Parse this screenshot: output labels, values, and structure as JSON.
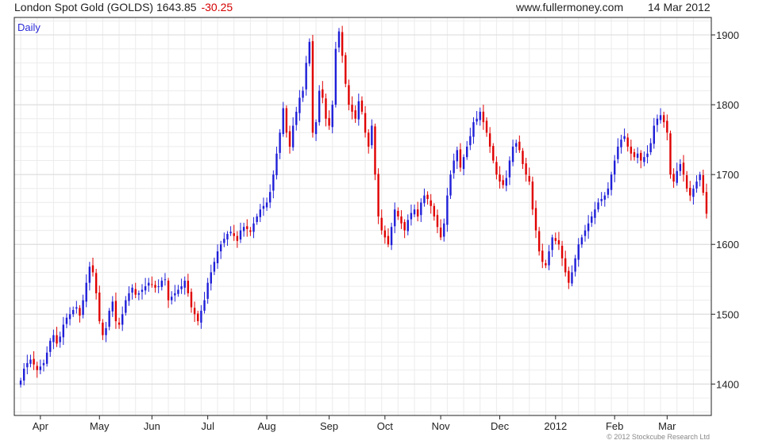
{
  "header": {
    "title": "London Spot Gold (GOLDS) 1643.85",
    "change": "-30.25",
    "site": "www.fullermoney.com",
    "date": "14 Mar 2012"
  },
  "period_label": "Daily",
  "copyright": "© 2012 Stockcube Research Ltd",
  "colors": {
    "up": "#1f1fd8",
    "down": "#e00000",
    "grid": "#d9d9d9",
    "axis": "#222222"
  },
  "chart_data": {
    "type": "candlestick",
    "title": "London Spot Gold (GOLDS)",
    "last_price": 1643.85,
    "change": -30.25,
    "ylim": [
      1355,
      1925
    ],
    "y_ticks": [
      1400,
      1500,
      1600,
      1700,
      1800,
      1900
    ],
    "y_axis_position": "right",
    "x_ticks": [
      "Apr",
      "May",
      "Jun",
      "Jul",
      "Aug",
      "Sep",
      "Oct",
      "Nov",
      "Dec",
      "2012",
      "Feb",
      "Mar"
    ],
    "grid": true,
    "approx_close_series": [
      1405,
      1422,
      1430,
      1435,
      1428,
      1420,
      1425,
      1430,
      1445,
      1462,
      1470,
      1458,
      1468,
      1485,
      1495,
      1500,
      1506,
      1510,
      1498,
      1520,
      1545,
      1568,
      1560,
      1530,
      1490,
      1470,
      1480,
      1505,
      1518,
      1490,
      1485,
      1500,
      1520,
      1530,
      1538,
      1528,
      1530,
      1535,
      1540,
      1545,
      1542,
      1538,
      1540,
      1548,
      1550,
      1520,
      1525,
      1530,
      1535,
      1540,
      1548,
      1530,
      1510,
      1500,
      1490,
      1505,
      1520,
      1545,
      1560,
      1575,
      1590,
      1600,
      1608,
      1615,
      1618,
      1612,
      1605,
      1620,
      1625,
      1622,
      1618,
      1630,
      1640,
      1650,
      1655,
      1660,
      1675,
      1700,
      1730,
      1760,
      1795,
      1760,
      1740,
      1770,
      1790,
      1810,
      1820,
      1860,
      1890,
      1760,
      1775,
      1820,
      1810,
      1780,
      1770,
      1800,
      1880,
      1905,
      1870,
      1830,
      1800,
      1790,
      1780,
      1805,
      1790,
      1760,
      1740,
      1770,
      1700,
      1640,
      1620,
      1610,
      1600,
      1625,
      1650,
      1640,
      1630,
      1620,
      1635,
      1645,
      1650,
      1640,
      1660,
      1670,
      1665,
      1655,
      1640,
      1625,
      1610,
      1630,
      1670,
      1700,
      1720,
      1735,
      1710,
      1725,
      1740,
      1755,
      1775,
      1780,
      1790,
      1775,
      1760,
      1740,
      1720,
      1700,
      1690,
      1685,
      1695,
      1720,
      1740,
      1745,
      1735,
      1715,
      1700,
      1690,
      1650,
      1620,
      1590,
      1575,
      1570,
      1590,
      1610,
      1605,
      1600,
      1580,
      1560,
      1545,
      1560,
      1580,
      1600,
      1610,
      1620,
      1630,
      1640,
      1650,
      1660,
      1665,
      1670,
      1680,
      1700,
      1720,
      1740,
      1750,
      1755,
      1740,
      1730,
      1725,
      1730,
      1720,
      1725,
      1730,
      1745,
      1770,
      1780,
      1785,
      1775,
      1760,
      1700,
      1690,
      1705,
      1715,
      1700,
      1680,
      1670,
      1680,
      1690,
      1700,
      1674,
      1644
    ]
  }
}
